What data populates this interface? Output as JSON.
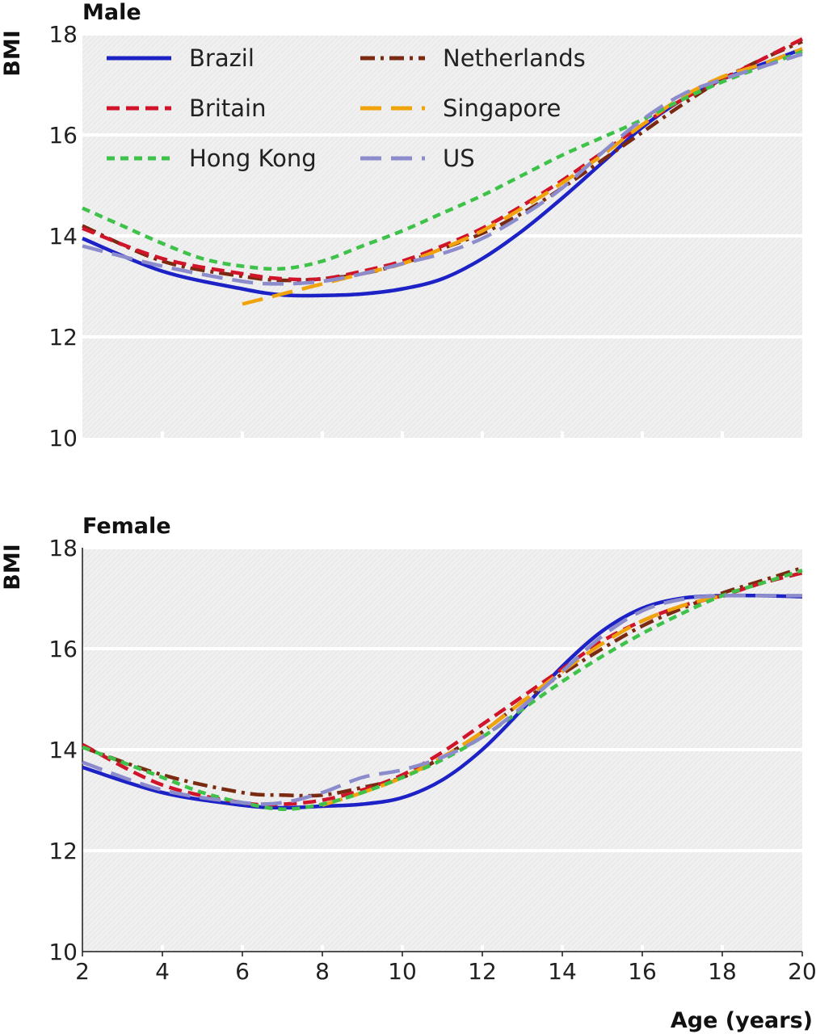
{
  "chart_data": [
    {
      "type": "line",
      "title": "Male",
      "ylabel": "BMI",
      "xlabel": "",
      "xlim": [
        2,
        20
      ],
      "ylim": [
        10,
        18
      ],
      "yticks": [
        10,
        12,
        14,
        16,
        18
      ],
      "xticks": [],
      "grid": true,
      "legend": "top-left",
      "series": [
        {
          "name": "Brazil",
          "color": "#1d22c6",
          "dash": "solid",
          "x": [
            2,
            4,
            6,
            7,
            8,
            9,
            10,
            11,
            12,
            13,
            14,
            15,
            16,
            17,
            18,
            19,
            20
          ],
          "y": [
            13.95,
            13.3,
            12.95,
            12.83,
            12.82,
            12.85,
            12.95,
            13.15,
            13.55,
            14.1,
            14.75,
            15.45,
            16.15,
            16.7,
            17.1,
            17.4,
            17.7
          ]
        },
        {
          "name": "Netherlands",
          "color": "#7a2a10",
          "dash": "dashdot",
          "x": [
            2,
            4,
            6,
            7,
            8,
            9,
            10,
            11,
            12,
            13,
            14,
            15,
            16,
            17,
            18,
            19,
            20
          ],
          "y": [
            14.2,
            13.5,
            13.2,
            13.12,
            13.15,
            13.25,
            13.45,
            13.75,
            14.05,
            14.45,
            14.95,
            15.5,
            16.05,
            16.6,
            17.1,
            17.5,
            17.85
          ]
        },
        {
          "name": "Britain",
          "color": "#d0142a",
          "dash": "dashed",
          "x": [
            2,
            4,
            6,
            7,
            8,
            9,
            10,
            11,
            12,
            13,
            14,
            15,
            16,
            17,
            18,
            19,
            20
          ],
          "y": [
            14.15,
            13.55,
            13.25,
            13.15,
            13.15,
            13.3,
            13.5,
            13.8,
            14.15,
            14.6,
            15.1,
            15.65,
            16.2,
            16.7,
            17.1,
            17.5,
            17.9
          ]
        },
        {
          "name": "Singapore",
          "color": "#f0a30a",
          "dash": "longdash",
          "x": [
            6,
            7,
            8,
            9,
            10,
            11,
            12,
            13,
            14,
            15,
            16,
            17,
            18,
            19,
            20
          ],
          "y": [
            12.65,
            12.85,
            13.05,
            13.25,
            13.45,
            13.75,
            14.1,
            14.55,
            15.05,
            15.6,
            16.2,
            16.75,
            17.15,
            17.4,
            17.7
          ]
        },
        {
          "name": "Hong Kong",
          "color": "#3ec24a",
          "dash": "shortdash",
          "x": [
            2,
            3,
            4,
            5,
            6,
            7,
            8,
            9,
            10,
            11,
            12,
            13,
            14,
            15,
            16,
            17,
            18,
            19,
            20
          ],
          "y": [
            14.55,
            14.2,
            13.85,
            13.55,
            13.4,
            13.35,
            13.5,
            13.8,
            14.1,
            14.45,
            14.8,
            15.2,
            15.6,
            15.95,
            16.3,
            16.7,
            17.05,
            17.35,
            17.65
          ]
        },
        {
          "name": "US",
          "color": "#8c8ccc",
          "dash": "longdash",
          "x": [
            2,
            4,
            6,
            7,
            8,
            9,
            10,
            11,
            12,
            13,
            14,
            15,
            16,
            17,
            18,
            19,
            20
          ],
          "y": [
            13.8,
            13.4,
            13.1,
            13.05,
            13.1,
            13.25,
            13.45,
            13.65,
            13.95,
            14.4,
            14.95,
            15.65,
            16.3,
            16.8,
            17.1,
            17.35,
            17.6
          ]
        }
      ]
    },
    {
      "type": "line",
      "title": "Female",
      "ylabel": "BMI",
      "xlabel": "Age (years)",
      "xlim": [
        2,
        20
      ],
      "ylim": [
        10,
        18
      ],
      "yticks": [
        10,
        12,
        14,
        16,
        18
      ],
      "xticks": [
        2,
        4,
        6,
        8,
        10,
        12,
        14,
        16,
        18,
        20
      ],
      "grid": true,
      "legend": "",
      "series": [
        {
          "name": "Brazil",
          "color": "#1d22c6",
          "dash": "solid",
          "x": [
            2,
            4,
            6,
            7,
            8,
            9,
            10,
            11,
            12,
            13,
            14,
            15,
            16,
            17,
            18,
            19,
            20
          ],
          "y": [
            13.65,
            13.15,
            12.9,
            12.85,
            12.88,
            12.92,
            13.05,
            13.4,
            14.0,
            14.8,
            15.65,
            16.35,
            16.8,
            17.0,
            17.05,
            17.05,
            17.03
          ]
        },
        {
          "name": "Netherlands",
          "color": "#7a2a10",
          "dash": "dashdot",
          "x": [
            2,
            4,
            6,
            7,
            8,
            9,
            10,
            11,
            12,
            13,
            14,
            15,
            16,
            17,
            18,
            19,
            20
          ],
          "y": [
            14.05,
            13.5,
            13.15,
            13.1,
            13.1,
            13.25,
            13.45,
            13.85,
            14.35,
            14.95,
            15.5,
            16.0,
            16.45,
            16.8,
            17.1,
            17.35,
            17.6
          ]
        },
        {
          "name": "Britain",
          "color": "#d0142a",
          "dash": "dashed",
          "x": [
            2,
            4,
            6,
            7,
            8,
            9,
            10,
            11,
            12,
            13,
            14,
            15,
            16,
            17,
            18,
            19,
            20
          ],
          "y": [
            14.1,
            13.3,
            12.95,
            12.92,
            13.0,
            13.2,
            13.5,
            13.95,
            14.5,
            15.05,
            15.6,
            16.15,
            16.55,
            16.85,
            17.05,
            17.3,
            17.5
          ]
        },
        {
          "name": "Singapore",
          "color": "#f0a30a",
          "dash": "longdash",
          "x": [
            8,
            9,
            10,
            11,
            12,
            13,
            14,
            15,
            16,
            17,
            18
          ],
          "y": [
            12.9,
            13.15,
            13.45,
            13.85,
            14.35,
            14.95,
            15.55,
            16.1,
            16.55,
            16.85,
            17.05
          ]
        },
        {
          "name": "Hong Kong",
          "color": "#3ec24a",
          "dash": "shortdash",
          "x": [
            2,
            3,
            4,
            5,
            6,
            7,
            8,
            9,
            10,
            11,
            12,
            13,
            14,
            15,
            16,
            17,
            18,
            19,
            20
          ],
          "y": [
            14.05,
            13.75,
            13.45,
            13.15,
            12.95,
            12.82,
            12.92,
            13.15,
            13.45,
            13.8,
            14.25,
            14.8,
            15.35,
            15.85,
            16.3,
            16.7,
            17.05,
            17.3,
            17.55
          ]
        },
        {
          "name": "US",
          "color": "#8c8ccc",
          "dash": "longdash",
          "x": [
            2,
            4,
            6,
            7,
            8,
            9,
            10,
            11,
            12,
            13,
            14,
            15,
            16,
            17,
            18,
            19,
            20
          ],
          "y": [
            13.75,
            13.2,
            12.95,
            12.95,
            13.15,
            13.45,
            13.6,
            13.85,
            14.25,
            14.85,
            15.55,
            16.25,
            16.75,
            16.98,
            17.05,
            17.05,
            17.05
          ]
        }
      ]
    }
  ]
}
